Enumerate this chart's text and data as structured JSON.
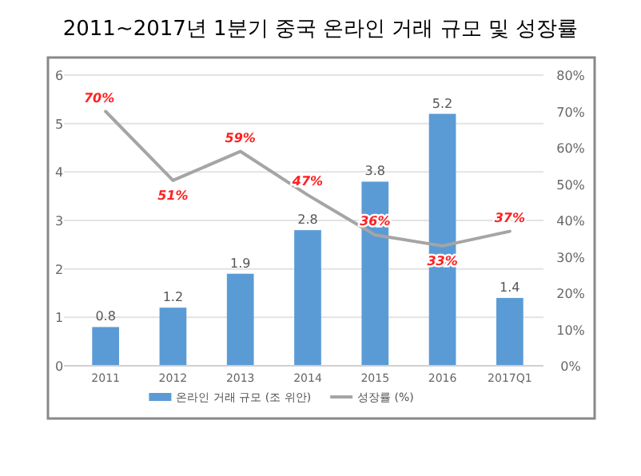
{
  "chart_data": {
    "type": "bar",
    "title": "2011~2017년 1분기 중국 온라인 거래 규모 및 성장률",
    "categories": [
      "2011",
      "2012",
      "2013",
      "2014",
      "2015",
      "2016",
      "2017Q1"
    ],
    "series": [
      {
        "name": "온라인 거래 규모 (조 위안)",
        "color": "#5b9bd5",
        "values": [
          0.8,
          1.2,
          1.9,
          2.8,
          3.8,
          5.2,
          1.4
        ],
        "value_labels": [
          "0.8",
          "1.2",
          "1.9",
          "2.8",
          "3.8",
          "5.2",
          "1.4"
        ]
      },
      {
        "name": "성장률 (%)",
        "type": "line",
        "axis": "y2",
        "color": "#a5a5a5",
        "values": [
          70,
          51,
          59,
          47,
          36,
          33,
          37
        ],
        "value_labels": [
          "70%",
          "51%",
          "59%",
          "47%",
          "36%",
          "33%",
          "37%"
        ]
      }
    ],
    "ylim": [
      0,
      6
    ],
    "yticks": [
      0,
      1,
      2,
      3,
      4,
      5,
      6
    ],
    "y2lim": [
      0,
      80
    ],
    "y2ticks": [
      {
        "value": 0,
        "label": "0%"
      },
      {
        "value": 10,
        "label": "10%"
      },
      {
        "value": 20,
        "label": "20%"
      },
      {
        "value": 30,
        "label": "30%"
      },
      {
        "value": 40,
        "label": "40%"
      },
      {
        "value": 50,
        "label": "50%"
      },
      {
        "value": 60,
        "label": "60%"
      },
      {
        "value": 70,
        "label": "70%"
      },
      {
        "value": 80,
        "label": "80%"
      }
    ],
    "grid": "y",
    "legend": "bottom",
    "marker": "none",
    "line_style": "solid"
  }
}
